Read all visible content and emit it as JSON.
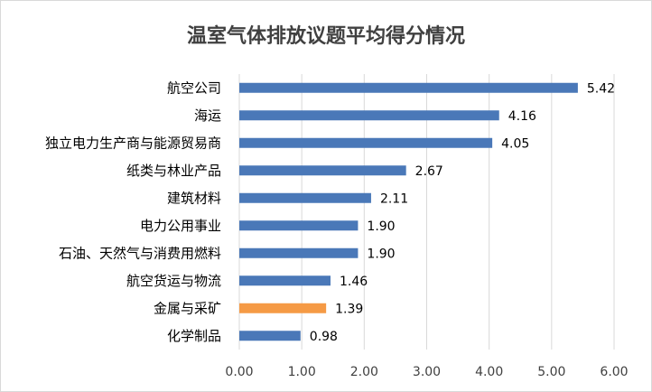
{
  "chart_data": {
    "type": "bar",
    "orientation": "horizontal",
    "title": "温室气体排放议题平均得分情况",
    "xlabel": "",
    "ylabel": "",
    "categories": [
      "航空公司",
      "海运",
      "独立电力生产商与能源贸易商",
      "纸类与林业产品",
      "建筑材料",
      "电力公用事业",
      "石油、天然气与消费用燃料",
      "航空货运与物流",
      "金属与采矿",
      "化学制品"
    ],
    "values": [
      5.42,
      4.16,
      4.05,
      2.67,
      2.11,
      1.9,
      1.9,
      1.46,
      1.39,
      0.98
    ],
    "value_labels": [
      "5.42",
      "4.16",
      "4.05",
      "2.67",
      "2.11",
      "1.90",
      "1.90",
      "1.46",
      "1.39",
      "0.98"
    ],
    "xlim": [
      0,
      6
    ],
    "x_ticks": [
      "0.00",
      "1.00",
      "2.00",
      "3.00",
      "4.00",
      "5.00",
      "6.00"
    ],
    "grid": "vertical",
    "legend": "none",
    "colors": {
      "default": "#4a78b8",
      "highlight": "#f59a45",
      "highlight_index": 8
    }
  }
}
